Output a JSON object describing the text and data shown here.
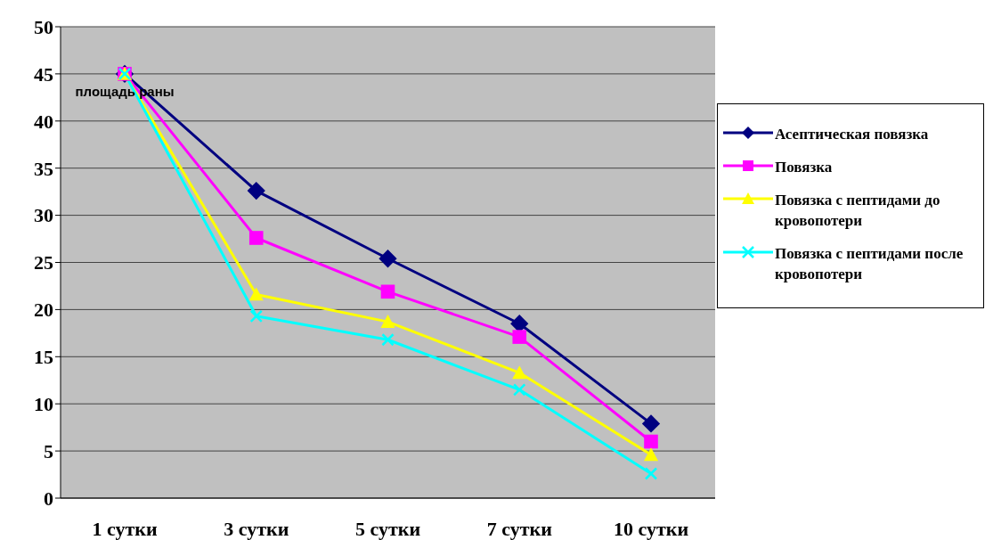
{
  "chart_data": {
    "type": "line",
    "categories": [
      "1 сутки",
      "3 сутки",
      "5 сутки",
      "7 сутки",
      "10 сутки"
    ],
    "series": [
      {
        "name": "Асептическая повязка",
        "color": "#000080",
        "marker": "diamond",
        "values": [
          45,
          32.6,
          25.4,
          18.5,
          7.9
        ]
      },
      {
        "name": "Повязка",
        "color": "#ff00ff",
        "marker": "square",
        "values": [
          45,
          27.6,
          21.9,
          17.1,
          6.0
        ]
      },
      {
        "name": "Повязка с пептидами до кровопотери",
        "color": "#ffff00",
        "marker": "triangle",
        "values": [
          45,
          21.6,
          18.7,
          13.3,
          4.6
        ]
      },
      {
        "name": "Повязка с пептидами после кровопотери",
        "color": "#00ffff",
        "marker": "cross",
        "values": [
          45,
          19.3,
          16.8,
          11.5,
          2.6
        ]
      }
    ],
    "annotations": [
      {
        "text": "площадь раны",
        "x": "1 сутки",
        "y": 45
      }
    ],
    "ylim": [
      0,
      50
    ],
    "yticks": [
      0,
      5,
      10,
      15,
      20,
      25,
      30,
      35,
      40,
      45,
      50
    ],
    "grid": "y",
    "legend": "right",
    "line_style": "solid"
  }
}
